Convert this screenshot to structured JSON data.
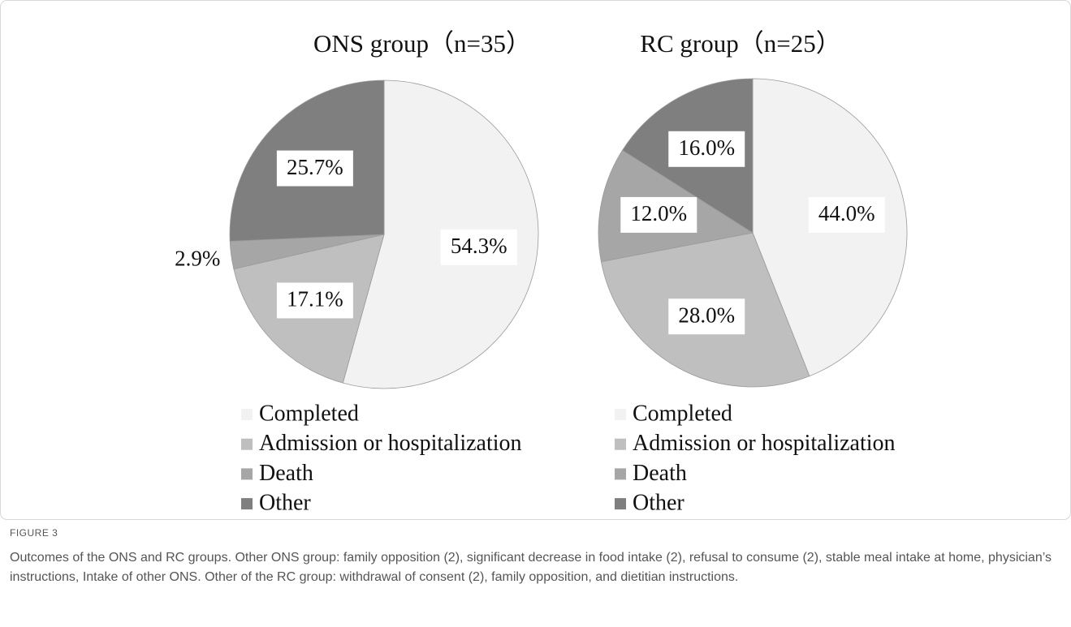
{
  "chart_data": [
    {
      "type": "pie",
      "title": "ONS group（n=35）",
      "categories": [
        "Completed",
        "Admission or hospitalization",
        "Death",
        "Other"
      ],
      "values": [
        54.3,
        17.1,
        2.9,
        25.7
      ],
      "value_labels": [
        "54.3%",
        "17.1%",
        "2.9%",
        "25.7%"
      ],
      "colors": [
        "#f2f2f2",
        "#bfbfbf",
        "#a6a6a6",
        "#7f7f7f"
      ]
    },
    {
      "type": "pie",
      "title": "RC group（n=25）",
      "categories": [
        "Completed",
        "Admission or hospitalization",
        "Death",
        "Other"
      ],
      "values": [
        44.0,
        28.0,
        12.0,
        16.0
      ],
      "value_labels": [
        "44.0%",
        "28.0%",
        "12.0%",
        "16.0%"
      ],
      "colors": [
        "#f2f2f2",
        "#bfbfbf",
        "#a6a6a6",
        "#7f7f7f"
      ]
    }
  ],
  "figure": {
    "label": "FIGURE 3",
    "caption": "Outcomes of the ONS and RC groups. Other ONS group: family opposition (2), significant decrease in food intake (2), refusal to consume (2), stable meal intake at home, physician’s instructions, Intake of other ONS. Other of the RC group: withdrawal of consent (2), family opposition, and dietitian instructions."
  }
}
